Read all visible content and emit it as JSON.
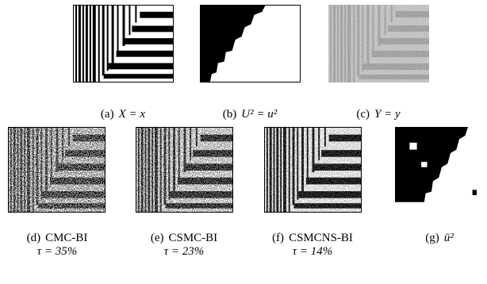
{
  "panels": [
    {
      "label": "(a)",
      "caption": "X = x"
    },
    {
      "label": "(b)",
      "caption": "U² = u²"
    },
    {
      "label": "(c)",
      "caption": "Y = y"
    },
    {
      "label": "(d)",
      "caption": "CMC-BI",
      "tau": "τ = 35%"
    },
    {
      "label": "(e)",
      "caption": "CSMC-BI",
      "tau": "τ = 23%"
    },
    {
      "label": "(f)",
      "caption": "CSMCNS-BI",
      "tau": "τ = 14%"
    },
    {
      "label": "(g)",
      "caption": "ū²"
    }
  ]
}
